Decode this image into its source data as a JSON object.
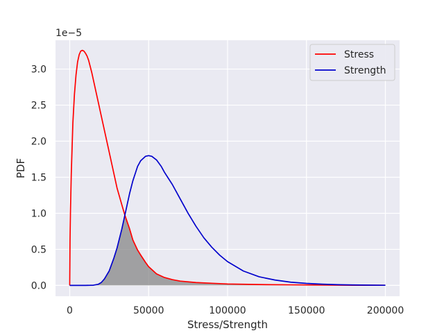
{
  "chart_data": {
    "type": "line",
    "title": "",
    "xlabel": "Stress/Strength",
    "ylabel": "PDF",
    "y_scale_label": "1e−5",
    "xlim": [
      -9000,
      209000
    ],
    "ylim": [
      -0.15,
      3.4
    ],
    "y_units_multiplier": 1e-05,
    "grid": true,
    "legend_placement": "top-right",
    "x_ticks": [
      0,
      50000,
      100000,
      150000,
      200000
    ],
    "x_tick_labels": [
      "0",
      "50000",
      "100000",
      "150000",
      "200000"
    ],
    "y_ticks": [
      0.0,
      0.5,
      1.0,
      1.5,
      2.0,
      2.5,
      3.0
    ],
    "y_tick_labels": [
      "0.0",
      "0.5",
      "1.0",
      "1.5",
      "2.0",
      "2.5",
      "3.0"
    ],
    "series": [
      {
        "name": "Stress",
        "color": "#ff0000",
        "x": [
          0,
          200,
          500,
          1000,
          2000,
          3000,
          4000,
          5000,
          6000,
          7000,
          8000,
          9000,
          10000,
          11000,
          12000,
          14000,
          16000,
          18000,
          20000,
          22000,
          25000,
          28000,
          30000,
          33000,
          35000,
          38000,
          40000,
          43000,
          45000,
          48000,
          50000,
          55000,
          60000,
          65000,
          70000,
          80000,
          90000,
          100000,
          120000,
          140000,
          160000,
          180000,
          200000
        ],
        "values": [
          0.0,
          0.62,
          1.05,
          1.55,
          2.25,
          2.65,
          2.92,
          3.1,
          3.2,
          3.25,
          3.26,
          3.25,
          3.22,
          3.18,
          3.12,
          2.95,
          2.75,
          2.55,
          2.35,
          2.15,
          1.85,
          1.55,
          1.35,
          1.12,
          0.97,
          0.78,
          0.63,
          0.49,
          0.42,
          0.32,
          0.26,
          0.16,
          0.11,
          0.08,
          0.06,
          0.04,
          0.03,
          0.02,
          0.012,
          0.008,
          0.005,
          0.003,
          0.002
        ]
      },
      {
        "name": "Strength",
        "color": "#0000cc",
        "x": [
          0,
          10000,
          15000,
          18000,
          20000,
          22000,
          25000,
          28000,
          30000,
          33000,
          35000,
          38000,
          40000,
          43000,
          45000,
          48000,
          50000,
          52000,
          55000,
          58000,
          60000,
          65000,
          70000,
          75000,
          80000,
          85000,
          90000,
          95000,
          100000,
          110000,
          120000,
          130000,
          140000,
          150000,
          160000,
          170000,
          180000,
          190000,
          200000
        ],
        "values": [
          0.0,
          0.0,
          0.003,
          0.015,
          0.04,
          0.09,
          0.2,
          0.38,
          0.52,
          0.78,
          0.98,
          1.28,
          1.45,
          1.65,
          1.73,
          1.79,
          1.8,
          1.79,
          1.74,
          1.65,
          1.57,
          1.4,
          1.2,
          1.0,
          0.82,
          0.66,
          0.53,
          0.42,
          0.33,
          0.2,
          0.12,
          0.075,
          0.045,
          0.028,
          0.017,
          0.01,
          0.006,
          0.004,
          0.002
        ]
      }
    ],
    "shaded_region": {
      "description_series": [
        "Stress",
        "Strength"
      ],
      "rule": "min",
      "color": "#808080"
    }
  }
}
